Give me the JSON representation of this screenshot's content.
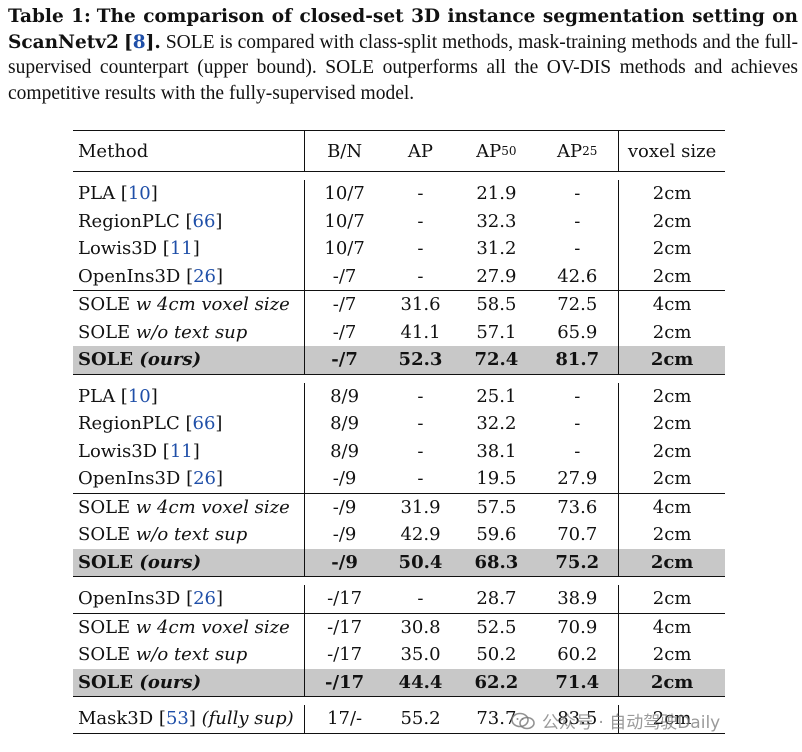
{
  "caption": {
    "label": "Table 1:",
    "bold_text": "The comparison of closed-set 3D instance segmentation setting on ScanNetv2",
    "bold_ref": "8",
    "bold_end": ".",
    "body": "SOLE is compared with class-split methods, mask-training methods and the full-supervised counterpart (upper bound). SOLE outperforms all the OV-DIS methods and achieves competitive results with the fully-supervised model."
  },
  "header": {
    "method": "Method",
    "bn": "B/N",
    "ap": "AP",
    "ap50_base": "AP",
    "ap50_sub": "50",
    "ap25_base": "AP",
    "ap25_sub": "25",
    "voxel": "voxel size"
  },
  "groups": [
    {
      "base_rows": [
        {
          "name": "PLA",
          "ref": "10",
          "bn": "10/7",
          "ap": "-",
          "ap50": "21.9",
          "ap25": "-",
          "voxel": "2cm"
        },
        {
          "name": "RegionPLC",
          "ref": "66",
          "bn": "10/7",
          "ap": "-",
          "ap50": "32.3",
          "ap25": "-",
          "voxel": "2cm"
        },
        {
          "name": "Lowis3D",
          "ref": "11",
          "bn": "10/7",
          "ap": "-",
          "ap50": "31.2",
          "ap25": "-",
          "voxel": "2cm"
        },
        {
          "name": "OpenIns3D",
          "ref": "26",
          "bn": "-/7",
          "ap": "-",
          "ap50": "27.9",
          "ap25": "42.6",
          "voxel": "2cm"
        }
      ],
      "sole_rows": [
        {
          "name": "SOLE",
          "variant": "w 4cm voxel size",
          "bn": "-/7",
          "ap": "31.6",
          "ap50": "58.5",
          "ap25": "72.5",
          "voxel": "4cm"
        },
        {
          "name": "SOLE",
          "variant": "w/o text sup",
          "bn": "-/7",
          "ap": "41.1",
          "ap50": "57.1",
          "ap25": "65.9",
          "voxel": "2cm"
        }
      ],
      "ours": {
        "name": "SOLE",
        "variant": "(ours)",
        "bn": "-/7",
        "ap": "52.3",
        "ap50": "72.4",
        "ap25": "81.7",
        "voxel": "2cm"
      }
    },
    {
      "base_rows": [
        {
          "name": "PLA",
          "ref": "10",
          "bn": "8/9",
          "ap": "-",
          "ap50": "25.1",
          "ap25": "-",
          "voxel": "2cm"
        },
        {
          "name": "RegionPLC",
          "ref": "66",
          "bn": "8/9",
          "ap": "-",
          "ap50": "32.2",
          "ap25": "-",
          "voxel": "2cm"
        },
        {
          "name": "Lowis3D",
          "ref": "11",
          "bn": "8/9",
          "ap": "-",
          "ap50": "38.1",
          "ap25": "-",
          "voxel": "2cm"
        },
        {
          "name": "OpenIns3D",
          "ref": "26",
          "bn": "-/9",
          "ap": "-",
          "ap50": "19.5",
          "ap25": "27.9",
          "voxel": "2cm"
        }
      ],
      "sole_rows": [
        {
          "name": "SOLE",
          "variant": "w 4cm voxel size",
          "bn": "-/9",
          "ap": "31.9",
          "ap50": "57.5",
          "ap25": "73.6",
          "voxel": "4cm"
        },
        {
          "name": "SOLE",
          "variant": "w/o text sup",
          "bn": "-/9",
          "ap": "42.9",
          "ap50": "59.6",
          "ap25": "70.7",
          "voxel": "2cm"
        }
      ],
      "ours": {
        "name": "SOLE",
        "variant": "(ours)",
        "bn": "-/9",
        "ap": "50.4",
        "ap50": "68.3",
        "ap25": "75.2",
        "voxel": "2cm"
      }
    },
    {
      "base_rows": [
        {
          "name": "OpenIns3D",
          "ref": "26",
          "bn": "-/17",
          "ap": "-",
          "ap50": "28.7",
          "ap25": "38.9",
          "voxel": "2cm"
        }
      ],
      "sole_rows": [
        {
          "name": "SOLE",
          "variant": "w 4cm voxel size",
          "bn": "-/17",
          "ap": "30.8",
          "ap50": "52.5",
          "ap25": "70.9",
          "voxel": "4cm"
        },
        {
          "name": "SOLE",
          "variant": "w/o text sup",
          "bn": "-/17",
          "ap": "35.0",
          "ap50": "50.2",
          "ap25": "60.2",
          "voxel": "2cm"
        }
      ],
      "ours": {
        "name": "SOLE",
        "variant": "(ours)",
        "bn": "-/17",
        "ap": "44.4",
        "ap50": "62.2",
        "ap25": "71.4",
        "voxel": "2cm"
      }
    }
  ],
  "upper_bound": {
    "name": "Mask3D",
    "ref": "53",
    "note": "(fully sup)",
    "bn": "17/-",
    "ap": "55.2",
    "ap50": "73.7",
    "ap25": "83.5",
    "voxel": "2cm"
  },
  "watermark": {
    "text": "公众号 · 自动驾驶Daily"
  }
}
